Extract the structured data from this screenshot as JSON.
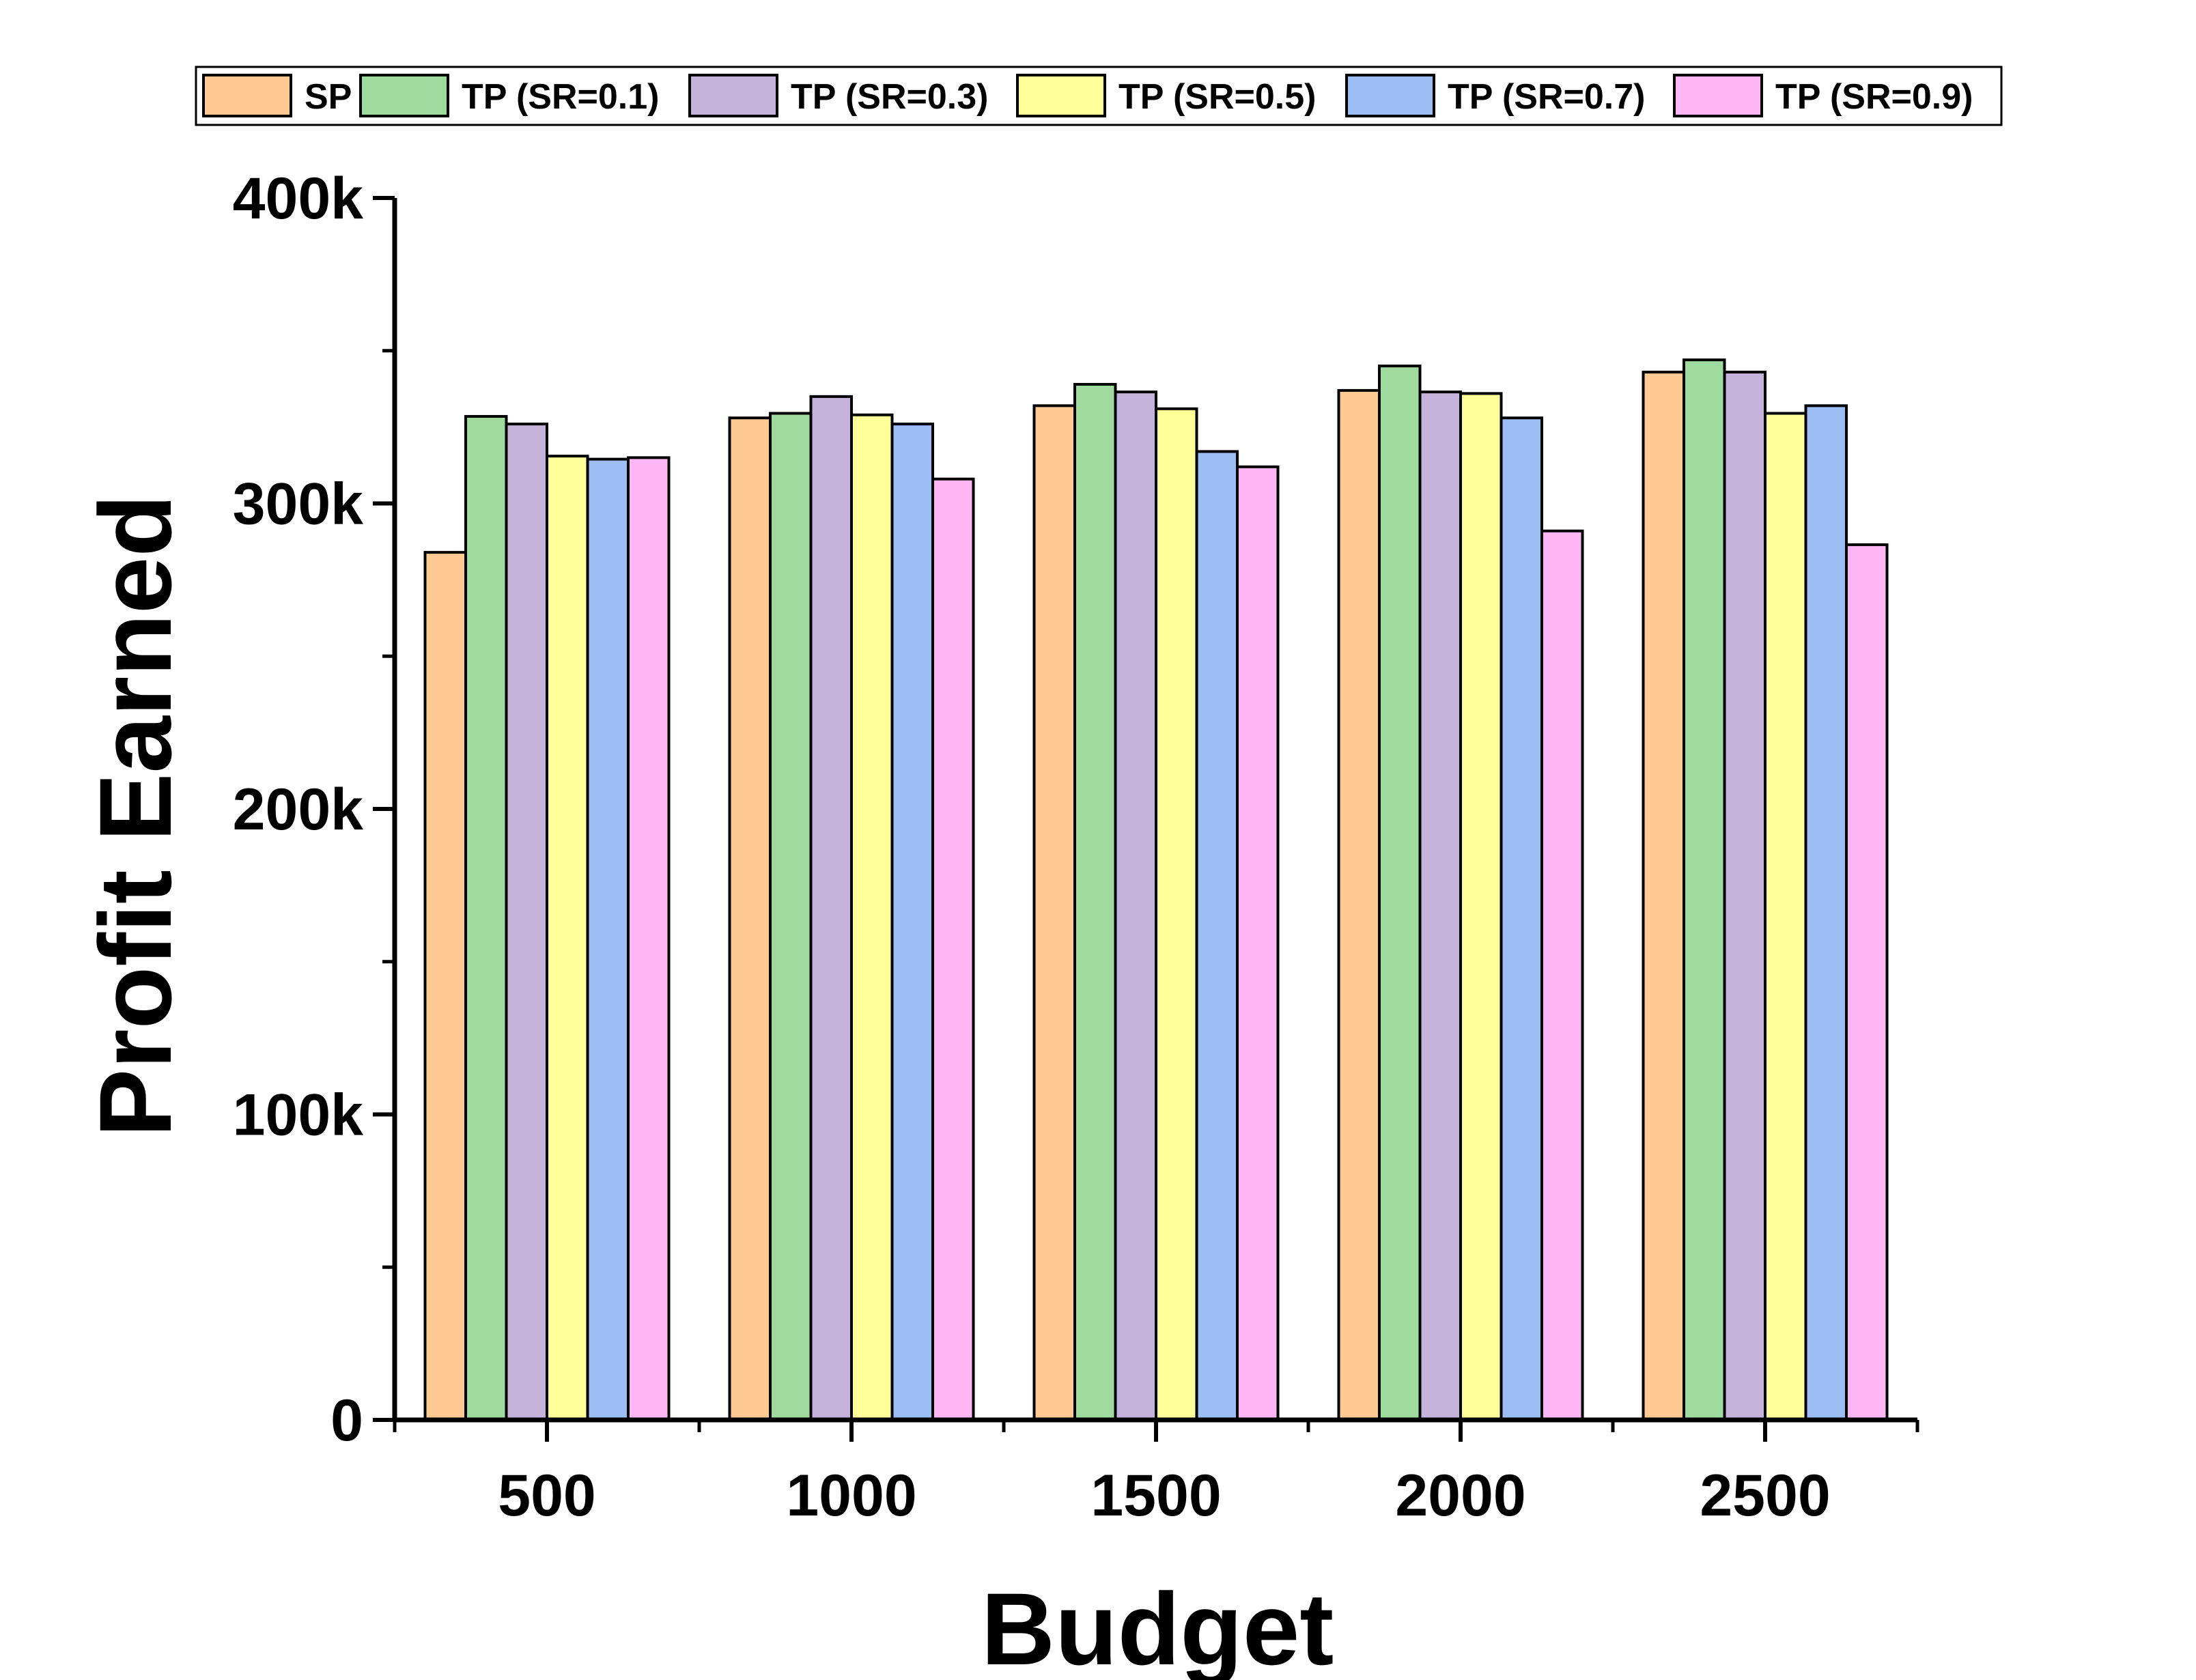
{
  "chart_data": {
    "type": "bar",
    "xlabel": "Budget",
    "ylabel": "Profit Earned",
    "categories": [
      "500",
      "1000",
      "1500",
      "2000",
      "2500"
    ],
    "ylim": [
      0,
      400000
    ],
    "yticks": [
      {
        "value": 0,
        "label": "0"
      },
      {
        "value": 100000,
        "label": "100k"
      },
      {
        "value": 200000,
        "label": "200k"
      },
      {
        "value": 300000,
        "label": "300k"
      },
      {
        "value": 400000,
        "label": "400k"
      }
    ],
    "legend_position": "top",
    "grid": false,
    "series": [
      {
        "name": "SP",
        "color": "#FFC993",
        "values": [
          284000,
          328000,
          332000,
          337000,
          343000
        ]
      },
      {
        "name": "TP (SR=0.1)",
        "color": "#9FDB9F",
        "values": [
          328500,
          329500,
          339000,
          345000,
          347000
        ]
      },
      {
        "name": "TP (SR=0.3)",
        "color": "#C6B3DB",
        "values": [
          326000,
          335000,
          336500,
          336500,
          343000
        ]
      },
      {
        "name": "TP (SR=0.5)",
        "color": "#FFFF99",
        "values": [
          315500,
          329000,
          331000,
          336000,
          329500
        ]
      },
      {
        "name": "TP (SR=0.7)",
        "color": "#9DBDF5",
        "values": [
          314500,
          326000,
          317000,
          328000,
          332000
        ]
      },
      {
        "name": "TP (SR=0.9)",
        "color": "#FFB6F5",
        "values": [
          315000,
          308000,
          312000,
          291000,
          286500
        ]
      }
    ]
  }
}
